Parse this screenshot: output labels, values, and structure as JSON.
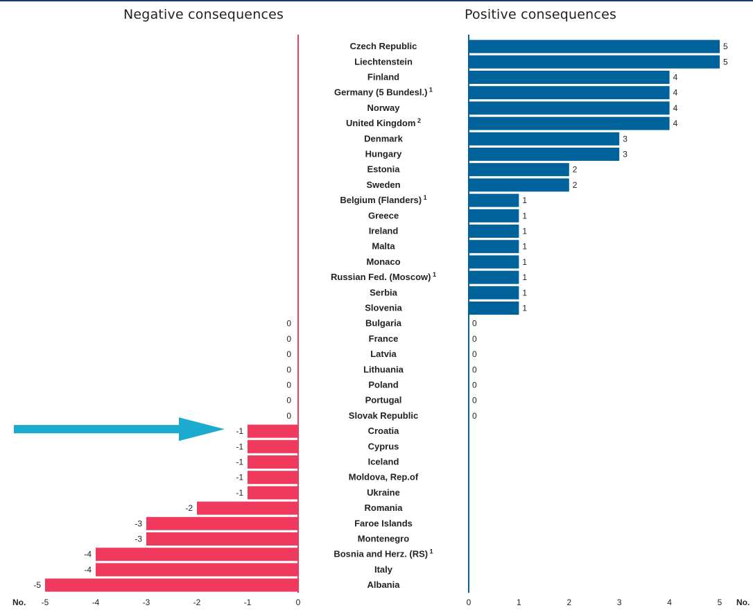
{
  "chart_data": {
    "type": "bar",
    "titles": {
      "negative": "Negative consequences",
      "positive": "Positive consequences"
    },
    "axis_unit": "No.",
    "negative_axis": {
      "range": [
        -5,
        0
      ],
      "ticks": [
        "-5",
        "-4",
        "-3",
        "-2",
        "-1",
        "0"
      ]
    },
    "positive_axis": {
      "range": [
        0,
        5
      ],
      "ticks": [
        "0",
        "1",
        "2",
        "3",
        "4",
        "5"
      ]
    },
    "colors": {
      "positive": "#00629b",
      "negative": "#ef3a5d",
      "arrow": "#1aabcf"
    },
    "highlight_row": "Croatia",
    "rows": [
      {
        "country": "Czech Republic",
        "pos": 5,
        "neg": null
      },
      {
        "country": "Liechtenstein",
        "pos": 5,
        "neg": null
      },
      {
        "country": "Finland",
        "pos": 4,
        "neg": null
      },
      {
        "country": "Germany (5 Bundesl.)",
        "sup": "1",
        "pos": 4,
        "neg": null
      },
      {
        "country": "Norway",
        "pos": 4,
        "neg": null
      },
      {
        "country": "United Kingdom",
        "sup": "2",
        "pos": 4,
        "neg": null
      },
      {
        "country": "Denmark",
        "pos": 3,
        "neg": null
      },
      {
        "country": "Hungary",
        "pos": 3,
        "neg": null
      },
      {
        "country": "Estonia",
        "pos": 2,
        "neg": null
      },
      {
        "country": "Sweden",
        "pos": 2,
        "neg": null
      },
      {
        "country": "Belgium (Flanders)",
        "sup": "1",
        "pos": 1,
        "neg": null
      },
      {
        "country": "Greece",
        "pos": 1,
        "neg": null
      },
      {
        "country": "Ireland",
        "pos": 1,
        "neg": null
      },
      {
        "country": "Malta",
        "pos": 1,
        "neg": null
      },
      {
        "country": "Monaco",
        "pos": 1,
        "neg": null
      },
      {
        "country": "Russian Fed. (Moscow)",
        "sup": "1",
        "pos": 1,
        "neg": null
      },
      {
        "country": "Serbia",
        "pos": 1,
        "neg": null
      },
      {
        "country": "Slovenia",
        "pos": 1,
        "neg": null
      },
      {
        "country": "Bulgaria",
        "pos": 0,
        "neg": 0
      },
      {
        "country": "France",
        "pos": 0,
        "neg": 0
      },
      {
        "country": "Latvia",
        "pos": 0,
        "neg": 0
      },
      {
        "country": "Lithuania",
        "pos": 0,
        "neg": 0
      },
      {
        "country": "Poland",
        "pos": 0,
        "neg": 0
      },
      {
        "country": "Portugal",
        "pos": 0,
        "neg": 0
      },
      {
        "country": "Slovak Republic",
        "pos": 0,
        "neg": 0
      },
      {
        "country": "Croatia",
        "pos": null,
        "neg": -1
      },
      {
        "country": "Cyprus",
        "pos": null,
        "neg": -1
      },
      {
        "country": "Iceland",
        "pos": null,
        "neg": -1
      },
      {
        "country": "Moldova, Rep.of",
        "pos": null,
        "neg": -1
      },
      {
        "country": "Ukraine",
        "pos": null,
        "neg": -1
      },
      {
        "country": "Romania",
        "pos": null,
        "neg": -2
      },
      {
        "country": "Faroe Islands",
        "pos": null,
        "neg": -3
      },
      {
        "country": "Montenegro",
        "pos": null,
        "neg": -3
      },
      {
        "country": "Bosnia and Herz. (RS)",
        "sup": "1",
        "pos": null,
        "neg": -4
      },
      {
        "country": "Italy",
        "pos": null,
        "neg": -4
      },
      {
        "country": "Albania",
        "pos": null,
        "neg": -5
      }
    ]
  }
}
